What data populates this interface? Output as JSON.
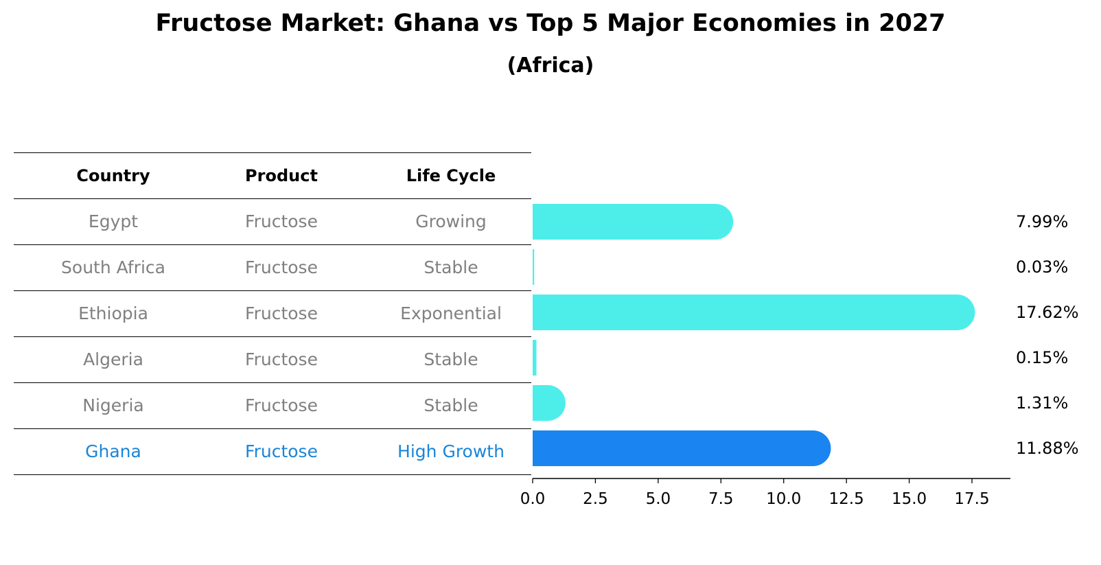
{
  "title": "Fructose Market: Ghana vs Top 5 Major Economies in 2027",
  "subtitle": "(Africa)",
  "table": {
    "headers": [
      "Country",
      "Product",
      "Life Cycle"
    ],
    "rows": [
      {
        "country": "Egypt",
        "product": "Fructose",
        "life_cycle": "Growing",
        "highlight": false
      },
      {
        "country": "South Africa",
        "product": "Fructose",
        "life_cycle": "Stable",
        "highlight": false
      },
      {
        "country": "Ethiopia",
        "product": "Fructose",
        "life_cycle": "Exponential",
        "highlight": false
      },
      {
        "country": "Algeria",
        "product": "Fructose",
        "life_cycle": "Stable",
        "highlight": false
      },
      {
        "country": "Nigeria",
        "product": "Fructose",
        "life_cycle": "Stable",
        "highlight": false
      },
      {
        "country": "Ghana",
        "product": "Fructose",
        "life_cycle": "High Growth",
        "highlight": true
      }
    ]
  },
  "colors": {
    "bar": "#4deeea",
    "highlight_bar": "#1a85f0",
    "highlight_text": "#1a85d8",
    "muted_text": "#808080"
  },
  "chart_data": {
    "type": "bar",
    "orientation": "horizontal",
    "categories": [
      "Egypt",
      "South Africa",
      "Ethiopia",
      "Algeria",
      "Nigeria",
      "Ghana"
    ],
    "values": [
      7.99,
      0.03,
      17.62,
      0.15,
      1.31,
      11.88
    ],
    "value_labels": [
      "7.99%",
      "0.03%",
      "17.62%",
      "0.15%",
      "1.31%",
      "11.88%"
    ],
    "highlight": "Ghana",
    "xlim": [
      0,
      18.5
    ],
    "xticks": [
      0.0,
      2.5,
      5.0,
      7.5,
      10.0,
      12.5,
      15.0,
      17.5
    ],
    "xtick_labels": [
      "0.0",
      "2.5",
      "5.0",
      "7.5",
      "10.0",
      "12.5",
      "15.0",
      "17.5"
    ],
    "xlabel": "",
    "ylabel": ""
  }
}
